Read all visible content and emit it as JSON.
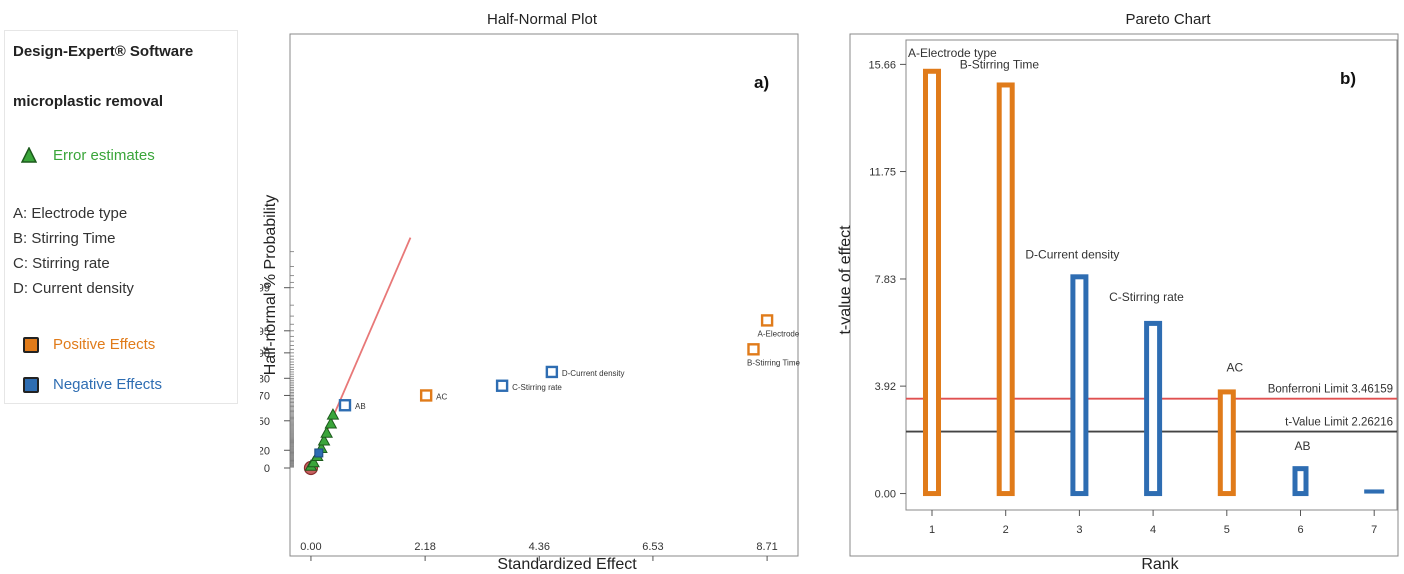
{
  "legend": {
    "software": "Design-Expert® Software",
    "response": "microplastic removal",
    "error_label": "Error estimates",
    "factors": [
      "A: Electrode type",
      "B: Stirring Time",
      "C: Stirring rate",
      "D: Current density"
    ],
    "positive_label": "Positive Effects",
    "negative_label": "Negative Effects"
  },
  "colors": {
    "positive": "#e07b1a",
    "negative": "#2e6db2",
    "error": "#3aa53a",
    "reference_line": "#e87878",
    "bonferroni": "#e05050",
    "tvalue": "#444444"
  },
  "chart_data": [
    {
      "type": "scatter",
      "title": "Half-Normal Plot",
      "panel_label": "a)",
      "xlabel": "Standardized Effect",
      "ylabel": "Half-normal % Probability",
      "x_ticks": [
        "0.00",
        "2.18",
        "4.36",
        "6.53",
        "8.71"
      ],
      "y_ticks": [
        "0",
        "20",
        "50",
        "70",
        "80",
        "90",
        "95",
        "99"
      ],
      "xlim": [
        -0.4,
        9.3
      ],
      "effects": [
        {
          "name": "A-Electrode type",
          "x": 8.71,
          "y": 96.5,
          "sign": "positive"
        },
        {
          "name": "B-Stirring Time",
          "x": 8.45,
          "y": 91,
          "sign": "positive"
        },
        {
          "name": "D-Current density",
          "x": 4.6,
          "y": 83,
          "sign": "negative"
        },
        {
          "name": "C-Stirring rate",
          "x": 3.65,
          "y": 76,
          "sign": "negative"
        },
        {
          "name": "AC",
          "x": 2.2,
          "y": 70,
          "sign": "positive"
        },
        {
          "name": "AB",
          "x": 0.65,
          "y": 63,
          "sign": "negative"
        }
      ],
      "error_estimates": [
        {
          "x": 0.0,
          "y": 2
        },
        {
          "x": 0.05,
          "y": 6
        },
        {
          "x": 0.12,
          "y": 13
        },
        {
          "x": 0.2,
          "y": 22
        },
        {
          "x": 0.25,
          "y": 30
        },
        {
          "x": 0.3,
          "y": 38
        },
        {
          "x": 0.38,
          "y": 47
        },
        {
          "x": 0.42,
          "y": 55
        }
      ],
      "negative_small": {
        "x": 0.15,
        "y": 17
      },
      "origin_point": {
        "x": 0.0,
        "y": 0
      },
      "reference_line": [
        {
          "x": 0.0,
          "y": 0
        },
        {
          "x": 1.9,
          "y": 99.9
        }
      ]
    },
    {
      "type": "bar",
      "title": "Pareto Chart",
      "panel_label": "b)",
      "xlabel": "Rank",
      "ylabel": "t-value of effect",
      "categories": [
        "1",
        "2",
        "3",
        "4",
        "5",
        "6",
        "7"
      ],
      "y_ticks": [
        "0.00",
        "3.92",
        "7.83",
        "11.75",
        "15.66"
      ],
      "ylim": [
        -0.6,
        16.55
      ],
      "bars": [
        {
          "rank": 1,
          "label": "A-Electrode type",
          "value": 15.5,
          "sign": "positive"
        },
        {
          "rank": 2,
          "label": "B-Stirring Time",
          "value": 15.0,
          "sign": "positive"
        },
        {
          "rank": 3,
          "label": "D-Current density",
          "value": 8.0,
          "sign": "negative"
        },
        {
          "rank": 4,
          "label": "C-Stirring rate",
          "value": 6.3,
          "sign": "negative"
        },
        {
          "rank": 5,
          "label": "AC",
          "value": 3.8,
          "sign": "positive"
        },
        {
          "rank": 6,
          "label": "AB",
          "value": 1.0,
          "sign": "negative"
        },
        {
          "rank": 7,
          "label": "",
          "value": 0.15,
          "sign": "negative"
        }
      ],
      "limits": [
        {
          "label": "Bonferroni Limit 3.46159",
          "value": 3.46159
        },
        {
          "label": "t-Value Limit 2.26216",
          "value": 2.26216
        }
      ]
    }
  ]
}
